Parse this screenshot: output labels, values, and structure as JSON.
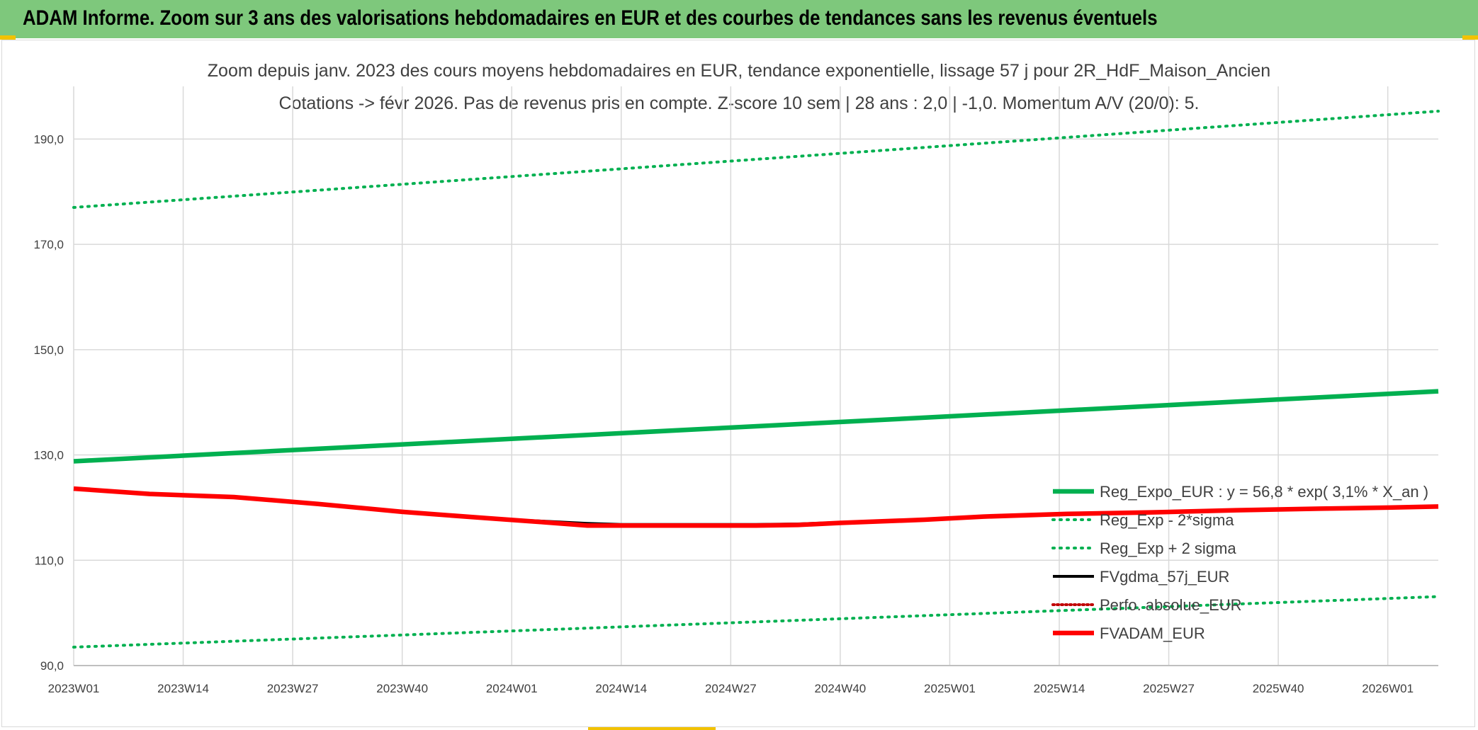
{
  "header": {
    "title": "ADAM Informe. Zoom sur 3 ans des valorisations hebdomadaires en EUR et des courbes de tendances sans les revenus éventuels"
  },
  "colors": {
    "banner": "#7ec87c",
    "regression": "#00b050",
    "fvgdma": "#000000",
    "fvadam": "#ff0000",
    "perfo": "#c00000",
    "grid": "#d9d9d9",
    "text": "#404040"
  },
  "chart_data": {
    "type": "line",
    "title": "Zoom depuis janv. 2023 des cours moyens hebdomadaires en EUR, tendance exponentielle, lissage 57 j pour 2R_HdF_Maison_Ancien",
    "subtitle": "Cotations -> févr 2026. Pas de revenus pris en compte. Z-score 10 sem | 28 ans : 2,0 | -1,0. Momentum A/V (20/0): 5.",
    "xlabel": "",
    "ylabel": "",
    "x_ticks": [
      "2023W01",
      "2023W14",
      "2023W27",
      "2023W40",
      "2024W01",
      "2024W14",
      "2024W27",
      "2024W40",
      "2025W01",
      "2025W14",
      "2025W27",
      "2025W40",
      "2026W01"
    ],
    "x_range": [
      "2023W01",
      "2026W07"
    ],
    "y_ticks": [
      "90,0",
      "110,0",
      "130,0",
      "150,0",
      "170,0",
      "190,0"
    ],
    "ylim": [
      90,
      200
    ],
    "grid": true,
    "legend_position": "right",
    "series": [
      {
        "name": "Reg_Expo_EUR : y = 56,8 * exp( 3,1% *  X_an )",
        "color": "#00b050",
        "style": "solid",
        "x": [
          "2023W01",
          "2026W07"
        ],
        "values": [
          128.8,
          142.1
        ]
      },
      {
        "name": "Reg_Exp - 2*sigma",
        "color": "#00b050",
        "style": "dotted",
        "x": [
          "2023W01",
          "2026W07"
        ],
        "values": [
          93.5,
          103.1
        ]
      },
      {
        "name": "Reg_Exp + 2 sigma",
        "color": "#00b050",
        "style": "dotted",
        "x": [
          "2023W01",
          "2026W07"
        ],
        "values": [
          177.0,
          195.3
        ]
      },
      {
        "name": "FVgdma_57j_EUR",
        "color": "#000000",
        "style": "solid",
        "x": [
          "2023W01",
          "2023W10",
          "2023W20",
          "2023W30",
          "2023W40",
          "2023W50",
          "2024W05",
          "2024W10",
          "2024W14",
          "2024W20",
          "2024W30",
          "2024W35",
          "2024W40",
          "2024W50",
          "2025W05",
          "2025W15",
          "2025W25",
          "2025W35",
          "2025W45",
          "2026W01",
          "2026W07"
        ],
        "values": [
          123.5,
          122.6,
          121.9,
          120.6,
          119.1,
          117.9,
          117.4,
          117.0,
          116.8,
          116.8,
          116.8,
          116.9,
          117.2,
          117.8,
          118.3,
          118.8,
          119.2,
          119.6,
          119.9,
          120.1,
          120.2
        ]
      },
      {
        "name": "Perfo. absolue_EUR",
        "color": "#c00000",
        "style": "dotted",
        "x": [],
        "values": []
      },
      {
        "name": "FVADAM_EUR",
        "color": "#ff0000",
        "style": "solid",
        "x": [
          "2023W01",
          "2023W10",
          "2023W20",
          "2023W30",
          "2023W40",
          "2023W50",
          "2024W05",
          "2024W10",
          "2024W14",
          "2024W20",
          "2024W30",
          "2024W35",
          "2024W40",
          "2024W50",
          "2025W05",
          "2025W15",
          "2025W25",
          "2025W35",
          "2025W45",
          "2026W01",
          "2026W07"
        ],
        "values": [
          123.6,
          122.6,
          122.0,
          120.7,
          119.2,
          118.0,
          117.2,
          116.6,
          116.6,
          116.6,
          116.6,
          116.7,
          117.1,
          117.7,
          118.3,
          118.8,
          119.1,
          119.5,
          119.8,
          120.0,
          120.2
        ]
      }
    ]
  }
}
